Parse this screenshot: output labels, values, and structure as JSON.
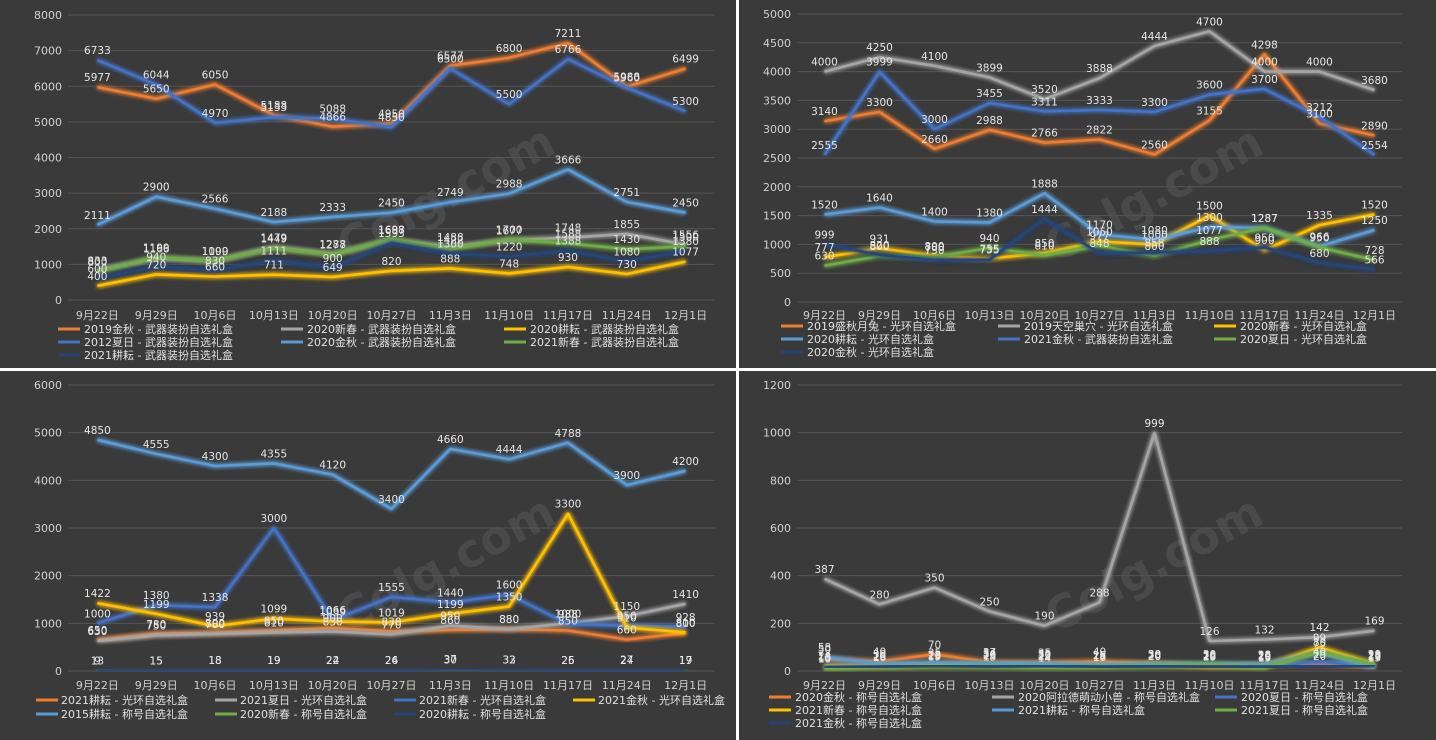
{
  "chart_data": [
    {
      "type": "line",
      "title": "",
      "categories": [
        "9月22日",
        "9月29日",
        "10月6日",
        "10月13日",
        "10月20日",
        "10月27日",
        "11月3日",
        "11月10日",
        "11月17日",
        "11月24日",
        "12月1日"
      ],
      "ylim": [
        0,
        8000
      ],
      "yticks": [
        0,
        1000,
        2000,
        3000,
        4000,
        5000,
        6000,
        7000,
        8000
      ],
      "legend_position": "bottom",
      "series": [
        {
          "name": "2019金秋 - 武器装扮自选礼盒",
          "color": "#ED7D31",
          "values": [
            5977,
            5650,
            6050,
            5188,
            4866,
            4950,
            6577,
            6800,
            7211,
            5988,
            6499
          ]
        },
        {
          "name": "2020新春 - 武器装扮自选礼盒",
          "color": "#A5A5A5",
          "values": [
            833,
            1166,
            1100,
            1479,
            1288,
            1687,
            1488,
            1677,
            1748,
            1855,
            1556
          ]
        },
        {
          "name": "2020耕耘 - 武器装扮自选礼盒",
          "color": "#FFC000",
          "values": [
            400,
            720,
            660,
            711,
            649,
            820,
            888,
            748,
            930,
            730,
            1077
          ]
        },
        {
          "name": "2012夏日 - 武器装扮自选礼盒",
          "color": "#4472C4",
          "values": [
            6733,
            6044,
            4970,
            5133,
            5088,
            4850,
            6500,
            5500,
            6766,
            5960,
            5300
          ]
        },
        {
          "name": "2020金秋 - 武器装扮自选礼盒",
          "color": "#5B9BD5",
          "values": [
            2111,
            2900,
            2566,
            2188,
            2333,
            2450,
            2749,
            2988,
            3666,
            2751,
            2450
          ]
        },
        {
          "name": "2021新春 - 武器装扮自选礼盒",
          "color": "#70AD47",
          "values": [
            800,
            1199,
            1099,
            1449,
            1277,
            1698,
            1422,
            1700,
            1588,
            1430,
            1500
          ]
        },
        {
          "name": "2021耕耘 - 武器装扮自选礼盒",
          "color": "#264478",
          "values": [
            600,
            940,
            830,
            1111,
            900,
            1593,
            1300,
            1220,
            1388,
            1080,
            1380
          ]
        }
      ]
    },
    {
      "type": "line",
      "title": "",
      "categories": [
        "9月22日",
        "9月29日",
        "10月6日",
        "10月13日",
        "10月20日",
        "10月27日",
        "11月3日",
        "11月10日",
        "11月17日",
        "11月24日",
        "12月1日"
      ],
      "ylim": [
        0,
        5000
      ],
      "yticks": [
        0,
        500,
        1000,
        1500,
        2000,
        2500,
        3000,
        3500,
        4000,
        4500,
        5000
      ],
      "legend_position": "bottom",
      "series": [
        {
          "name": "2019盛秋月兔 - 光环自选礼盒",
          "color": "#ED7D31",
          "values": [
            3140,
            3300,
            2660,
            2988,
            2766,
            2822,
            2560,
            3155,
            4298,
            3100,
            2890
          ]
        },
        {
          "name": "2019天空巢穴 - 光环自选礼盒",
          "color": "#A5A5A5",
          "values": [
            4000,
            4250,
            4100,
            3899,
            3520,
            3888,
            4444,
            4700,
            4000,
            4000,
            3680
          ]
        },
        {
          "name": "2020新春 - 光环自选礼盒",
          "color": "#FFC000",
          "values": [
            777,
            931,
            800,
            755,
            850,
            1050,
            1000,
            1500,
            900,
            1335,
            1520
          ]
        },
        {
          "name": "2020耕耘 - 光环自选礼盒",
          "color": "#5B9BD5",
          "values": [
            1520,
            1640,
            1400,
            1380,
            1888,
            1170,
            1080,
            1300,
            1287,
            966,
            1250
          ]
        },
        {
          "name": "2021金秋 - 武器装扮自选礼盒",
          "color": "#4472C4",
          "values": [
            2555,
            3999,
            3000,
            3455,
            3311,
            3333,
            3300,
            3600,
            3700,
            3212,
            2554
          ]
        },
        {
          "name": "2020夏日 - 光环自选礼盒",
          "color": "#70AD47",
          "values": [
            630,
            800,
            780,
            940,
            810,
            977,
            800,
            1077,
            1287,
            950,
            728
          ]
        },
        {
          "name": "2020金秋 - 光环自选礼盒",
          "color": "#264478",
          "values": [
            999,
            820,
            730,
            735,
            1444,
            848,
            858,
            888,
            950,
            680,
            566
          ]
        }
      ]
    },
    {
      "type": "line",
      "title": "",
      "categories": [
        "9月22日",
        "9月29日",
        "10月6日",
        "10月13日",
        "10月20日",
        "10月27日",
        "11月3日",
        "11月10日",
        "11月17日",
        "11月24日",
        "12月1日"
      ],
      "ylim": [
        0,
        6000
      ],
      "yticks": [
        0,
        1000,
        2000,
        3000,
        4000,
        5000,
        6000
      ],
      "legend_position": "bottom",
      "series": [
        {
          "name": "2021耕耘 - 光环自选礼盒",
          "color": "#ED7D31",
          "values": [
            650,
            780,
            800,
            850,
            900,
            830,
            860,
            880,
            850,
            660,
            800
          ]
        },
        {
          "name": "2021夏日 - 光环自选礼盒",
          "color": "#A5A5A5",
          "values": [
            630,
            750,
            780,
            810,
            830,
            770,
            950,
            880,
            1000,
            1150,
            1410
          ]
        },
        {
          "name": "2021新春 - 光环自选礼盒",
          "color": "#4472C4",
          "values": [
            1000,
            1380,
            1338,
            3000,
            1066,
            1555,
            1440,
            1600,
            988,
            950,
            928
          ]
        },
        {
          "name": "2021金秋 - 光环自选礼盒",
          "color": "#FFC000",
          "values": [
            1422,
            1199,
            939,
            1099,
            1039,
            1019,
            1199,
            1350,
            3300,
            910,
            810
          ]
        },
        {
          "name": "2015耕耘 - 称号自选礼盒",
          "color": "#5B9BD5",
          "values": [
            4850,
            4555,
            4300,
            4355,
            4120,
            3400,
            4660,
            4444,
            4788,
            3900,
            4200
          ]
        },
        {
          "name": "2020新春 - 称号自选礼盒",
          "color": "#70AD47",
          "values": [
            13,
            15,
            18,
            19,
            22,
            26,
            30,
            33,
            25,
            27,
            19
          ]
        },
        {
          "name": "2020耕耘 - 称号自选礼盒",
          "color": "#264478",
          "values": [
            9,
            15,
            18,
            19,
            24,
            24,
            37,
            32,
            26,
            24,
            17
          ]
        }
      ]
    },
    {
      "type": "line",
      "title": "",
      "categories": [
        "9月22日",
        "9月29日",
        "10月6日",
        "10月13日",
        "10月20日",
        "10月27日",
        "11月3日",
        "11月10日",
        "11月17日",
        "11月24日",
        "12月1日"
      ],
      "ylim": [
        0,
        1200
      ],
      "yticks": [
        0,
        200,
        400,
        600,
        800,
        1000,
        1200
      ],
      "legend_position": "bottom",
      "series": [
        {
          "name": "2020金秋 - 称号自选礼盒",
          "color": "#ED7D31",
          "values": [
            50,
            40,
            70,
            37,
            35,
            40,
            30,
            20,
            26,
            29,
            17
          ]
        },
        {
          "name": "2020阿拉德萌动小兽 - 称号自选礼盒",
          "color": "#A5A5A5",
          "values": [
            387,
            280,
            350,
            250,
            190,
            288,
            999,
            126,
            132,
            142,
            169
          ]
        },
        {
          "name": "2020夏日 - 称号自选礼盒",
          "color": "#4472C4",
          "values": [
            24,
            20,
            28,
            34,
            30,
            17,
            20,
            19,
            20,
            40,
            20
          ]
        },
        {
          "name": "2021新春 - 称号自选礼盒",
          "color": "#FFC000",
          "values": [
            18,
            20,
            25,
            25,
            25,
            25,
            28,
            20,
            20,
            99,
            29
          ]
        },
        {
          "name": "2021耕耘 - 称号自选礼盒",
          "color": "#5B9BD5",
          "values": [
            58,
            30,
            35,
            30,
            30,
            26,
            30,
            30,
            28,
            75,
            15
          ]
        },
        {
          "name": "2021夏日 - 称号自选礼盒",
          "color": "#70AD47",
          "values": [
            10,
            16,
            19,
            18,
            14,
            16,
            20,
            26,
            15,
            80,
            28
          ]
        },
        {
          "name": "2021金秋 - 称号自选礼盒",
          "color": "#264478",
          "values": [
            15,
            18,
            23,
            19,
            22,
            18,
            20,
            18,
            18,
            20,
            23
          ]
        }
      ]
    }
  ],
  "watermark": "Colg.com"
}
